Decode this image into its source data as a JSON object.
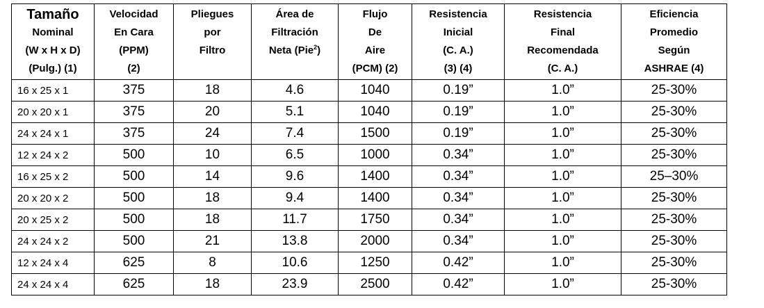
{
  "headers": [
    [
      "Tamaño",
      "Nominal",
      "(W x H x D)",
      "(Pulg.) (1)"
    ],
    [
      "Velocidad",
      "En Cara",
      "(PPM)",
      "(2)"
    ],
    [
      "Pliegues",
      "por",
      "Filtro"
    ],
    [
      "Área de",
      "Filtración",
      "Neta (Pie",
      "2",
      ")"
    ],
    [
      "Flujo",
      "De",
      "Aire",
      "(PCM) (2)"
    ],
    [
      "Resistencia",
      "Inicial",
      "(C. A.)",
      "(3) (4)"
    ],
    [
      "Resistencia",
      "Final",
      "Recomendada",
      "(C. A.)"
    ],
    [
      "Eficiencia",
      "Promedio",
      "Según",
      "ASHRAE (4)"
    ]
  ],
  "rows": [
    [
      "16 x 25 x 1",
      "375",
      "18",
      "4.6",
      "1040",
      "0.19”",
      "1.0”",
      "25-30%"
    ],
    [
      "20 x 20 x 1",
      "375",
      "20",
      "5.1",
      "1040",
      "0.19”",
      "1.0”",
      "25-30%"
    ],
    [
      "24 x 24 x 1",
      "375",
      "24",
      "7.4",
      "1500",
      "0.19”",
      "1.0”",
      "25-30%"
    ],
    [
      "12 x 24 x 2",
      "500",
      "10",
      "6.5",
      "1000",
      "0.34”",
      "1.0”",
      "25-30%"
    ],
    [
      "16 x 25 x 2",
      "500",
      "14",
      "9.6",
      "1400",
      "0.34”",
      "1.0”",
      "25–30%"
    ],
    [
      "20 x 20 x 2",
      "500",
      "18",
      "9.4",
      "1400",
      "0.34”",
      "1.0”",
      "25-30%"
    ],
    [
      "20 x 25 x 2",
      "500",
      "18",
      "11.7",
      "1750",
      "0.34”",
      "1.0”",
      "25-30%"
    ],
    [
      "24 x 24 x 2",
      "500",
      "21",
      "13.8",
      "2000",
      "0.34”",
      "1.0”",
      "25-30%"
    ],
    [
      "12 x 24 x 4",
      "625",
      "8",
      "10.6",
      "1250",
      "0.42”",
      "1.0”",
      "25-30%"
    ],
    [
      "24 x 24 x 4",
      "625",
      "18",
      "23.9",
      "2500",
      "0.42”",
      "1.0”",
      "25-30%"
    ]
  ]
}
